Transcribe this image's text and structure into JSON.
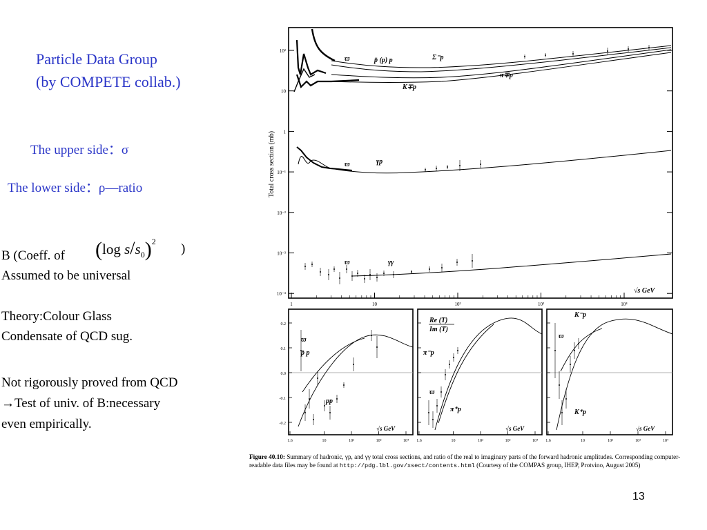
{
  "slide": {
    "title_line1": "Particle Data Group",
    "title_line2": "(by COMPETE collab.)",
    "upper_side": "The upper side：σ",
    "lower_side": "The lower side：ρ—ratio",
    "coeff_prefix": "B (Coeff. of",
    "formula": {
      "log": "log",
      "s": "s",
      "s0": "s",
      "s0_sub": "0",
      "exp": "2"
    },
    "coeff_suffix": ")",
    "assumed": "Assumed to be universal",
    "theory_line1": "Theory:Colour Glass",
    "theory_line2": "Condensate of QCD sug.",
    "proof_line1": "Not rigorously proved from QCD",
    "proof_line2": "→Test of univ. of B:necessary",
    "proof_line3": "even empirically.",
    "page_number": "13"
  },
  "figure": {
    "top_panel": {
      "ylabel": "Total cross section (mb)",
      "y_ticks": [
        "10²",
        "10",
        "1",
        "10⁻¹",
        "10⁻²",
        "10⁻³",
        "10⁻⁴"
      ],
      "x_ticks": [
        "1",
        "10",
        "10²",
        "10³",
        "10⁴"
      ],
      "labels": {
        "pbar_p": "p̄ (p) p",
        "sigma_p": "Σ⁻p",
        "pi_p": "π∓p",
        "k_p": "K∓p",
        "gamma_p": "γp",
        "gamma_gamma": "γγ",
        "cross_symbol": "ϖ",
        "sqrt_s": "√s GeV"
      }
    },
    "bottom_panels": [
      {
        "labels": [
          "p̄ p",
          "pp"
        ],
        "cross_symbol": "ϖ",
        "y_ticks": [
          "0.2",
          "0.1",
          "0.0",
          "-0.1",
          "-0.2"
        ],
        "x_ticks": [
          "1.6",
          "10",
          "10²",
          "10³",
          "10⁴"
        ],
        "sqrt_s": "√s GeV"
      },
      {
        "labels": [
          "π⁻p",
          "π⁺p"
        ],
        "ratio_num": "Re (T)",
        "ratio_den": "Im (T)",
        "cross_symbol": "ϖ",
        "x_ticks": [
          "1.6",
          "10",
          "10²",
          "10³",
          "10⁴"
        ],
        "sqrt_s": "√s GeV"
      },
      {
        "labels": [
          "K⁻p",
          "K⁺p"
        ],
        "cross_symbol": "ϖ",
        "x_ticks": [
          "1.6",
          "10",
          "10²",
          "10³",
          "10⁴"
        ],
        "sqrt_s": "√s GeV"
      }
    ],
    "caption": {
      "figure_label": "Figure 40.10:",
      "text1": " Summary of hadronic, γp, and γγ total cross sections, and ratio of the real to imaginary parts of the forward hadronic amplitudes. Corresponding computer-readable data files may be found at ",
      "url": "http://pdg.lbl.gov/xsect/contents.html",
      "text2": " (Courtesy of the COMPAS group, IHEP, Protvino, August 2005)"
    }
  }
}
